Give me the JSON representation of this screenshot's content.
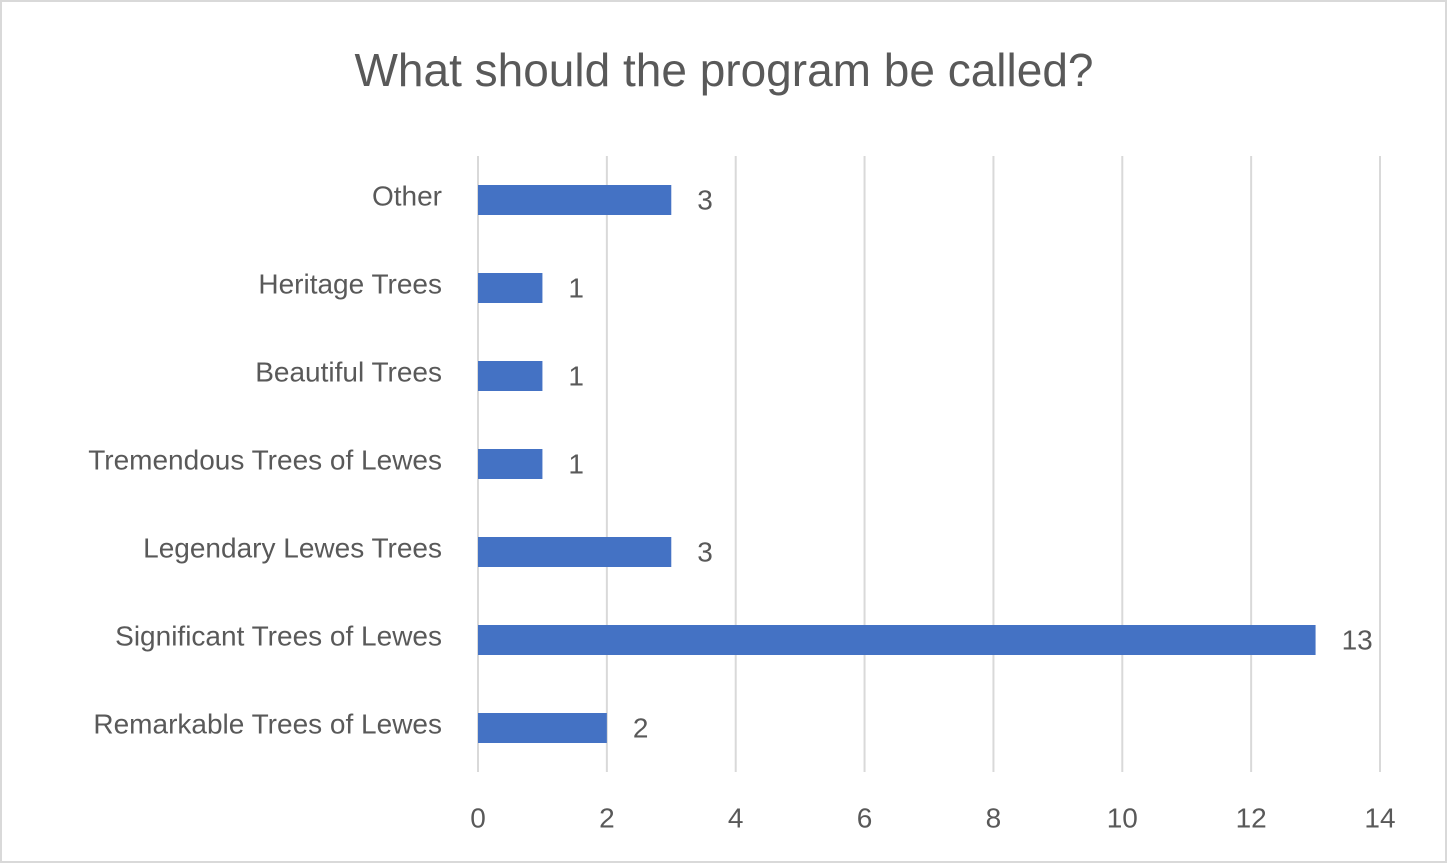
{
  "chart_data": {
    "type": "hbar",
    "title": "What should the program be called?",
    "categories": [
      "Other",
      "Heritage Trees",
      "Beautiful Trees",
      "Tremendous Trees of Lewes",
      "Legendary Lewes Trees",
      "Significant Trees of Lewes",
      "Remarkable Trees of Lewes"
    ],
    "values": [
      3,
      1,
      1,
      1,
      3,
      13,
      2
    ],
    "color": "#4472c4",
    "xlim": [
      0,
      14
    ],
    "xticks": [
      0,
      2,
      4,
      6,
      8,
      10,
      12,
      14
    ],
    "grid": true
  }
}
